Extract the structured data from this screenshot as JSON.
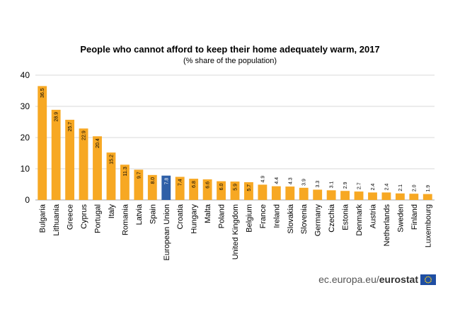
{
  "chart_data": {
    "type": "bar",
    "title": "People who cannot afford to keep their home adequately warm, 2017",
    "subtitle": "(% share of the population)",
    "xlabel": "",
    "ylabel": "",
    "ylim": [
      0,
      40
    ],
    "yticks": [
      0,
      10,
      20,
      30,
      40
    ],
    "grid": true,
    "categories": [
      "Bulgaria",
      "Lithuania",
      "Greece",
      "Cyprus",
      "Portugal",
      "Italy",
      "Romania",
      "Latvia",
      "Spain",
      "European Union",
      "Croatia",
      "Hungary",
      "Malta",
      "Poland",
      "United Kingdom",
      "Belgium",
      "France",
      "Ireland",
      "Slovakia",
      "Slovenia",
      "Germany",
      "Czechia",
      "Estonia",
      "Denmark",
      "Austria",
      "Netherlands",
      "Sweden",
      "Finland",
      "Luxembourg"
    ],
    "values": [
      36.5,
      28.9,
      25.7,
      22.9,
      20.4,
      15.2,
      11.3,
      9.7,
      8.0,
      7.8,
      7.4,
      6.8,
      6.6,
      6.0,
      5.9,
      5.7,
      4.9,
      4.4,
      4.3,
      3.9,
      3.3,
      3.1,
      2.9,
      2.7,
      2.4,
      2.4,
      2.1,
      2.0,
      1.9
    ],
    "value_labels": [
      "36.5",
      "28.9",
      "25.7",
      "22.9",
      "20.4",
      "15.2",
      "11.3",
      "9.7",
      "8.0",
      "7.8",
      "7.4",
      "6.8",
      "6.6",
      "6.0",
      "5.9",
      "5.7",
      "4.9",
      "4.4",
      "4.3",
      "3.9",
      "3.3",
      "3.1",
      "2.9",
      "2.7",
      "2.4",
      "2.4",
      "2.1",
      "2.0",
      "1.9"
    ],
    "highlight_category": "European Union",
    "colors": {
      "bar": "#f7a823",
      "highlight": "#2e5fa7",
      "grid": "#d9d9d9"
    }
  },
  "footer": {
    "source_prefix": "ec.europa.eu/",
    "source_brand": "eurostat"
  },
  "icons": {
    "flag": "eu-flag-icon"
  }
}
